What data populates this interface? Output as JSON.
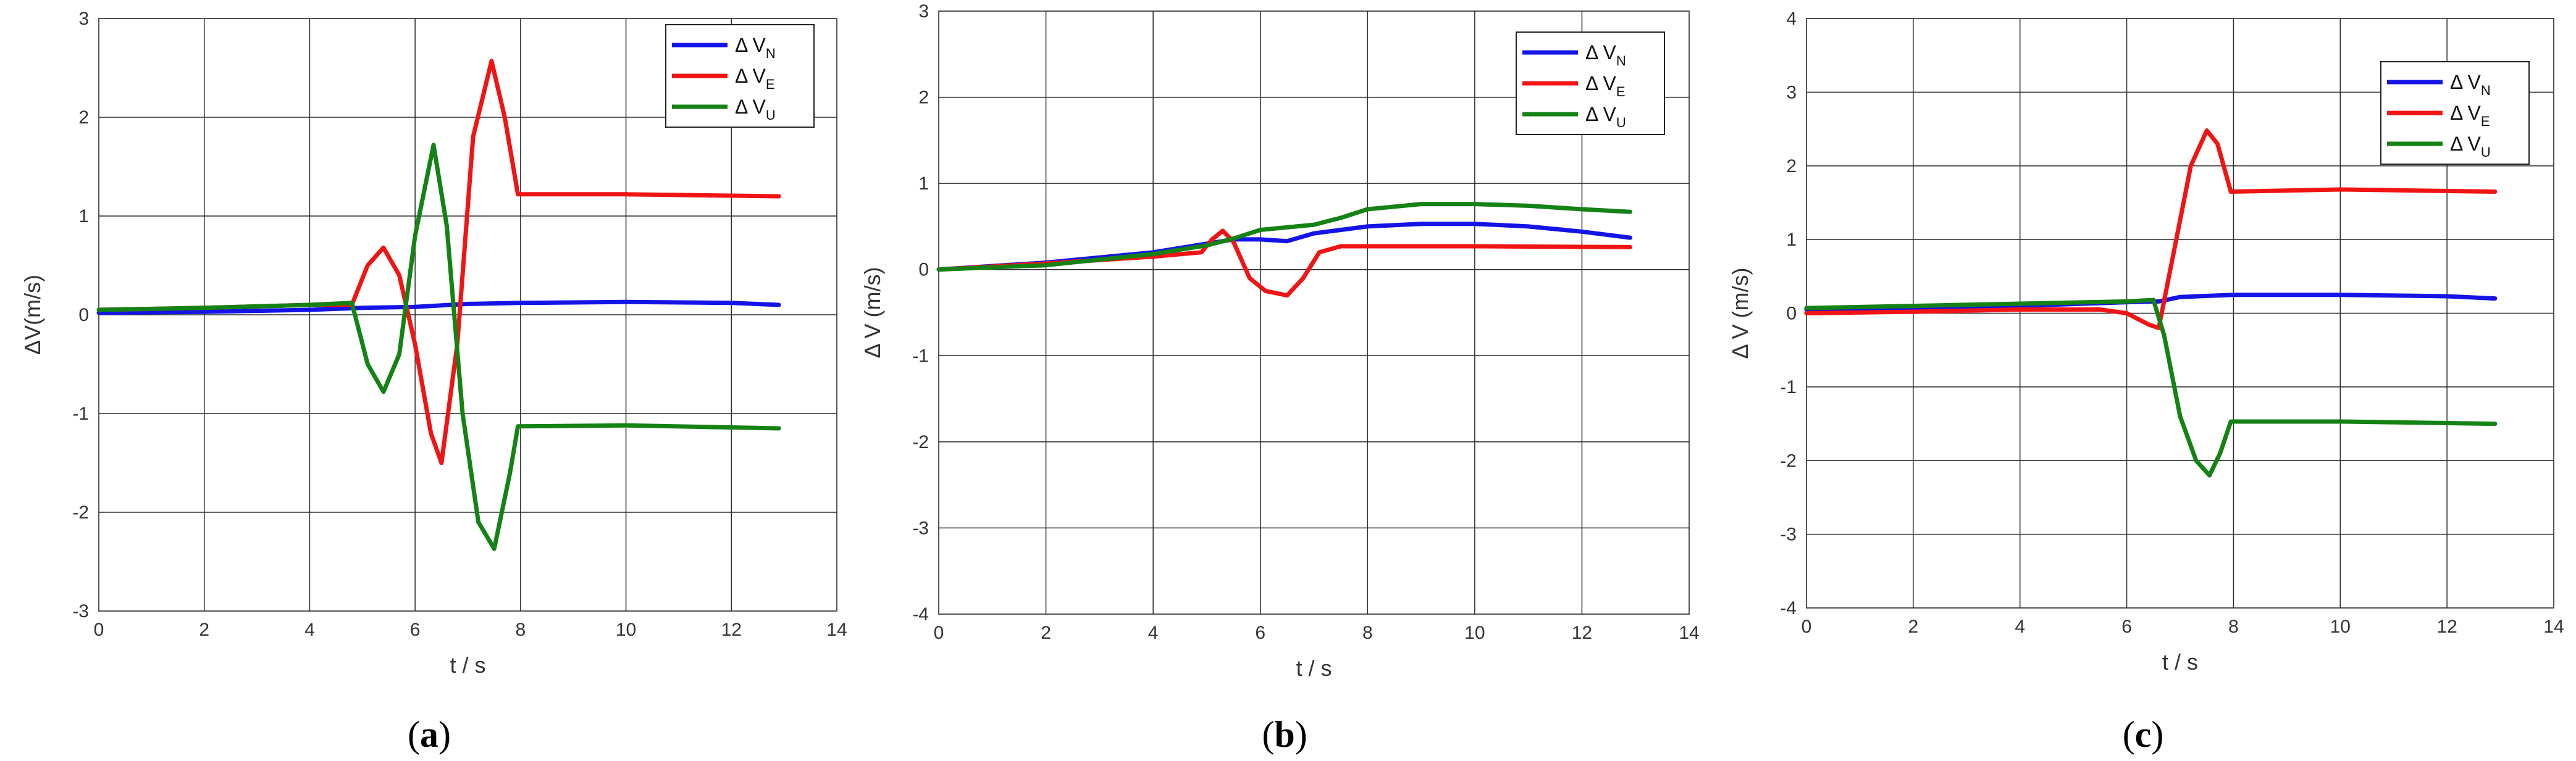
{
  "figure": {
    "colors": {
      "vn": "#1414e6",
      "ve": "#f01414",
      "vu": "#148214",
      "grid": "#2b2b2b",
      "frame": "#555555"
    }
  },
  "chart_data": [
    {
      "type": "line",
      "panel_label": "a",
      "xlabel": "t / s",
      "ylabel": "ΔV(m/s)",
      "xlim": [
        0,
        14
      ],
      "ylim": [
        -3,
        3
      ],
      "xticks": [
        0,
        2,
        4,
        6,
        8,
        10,
        12,
        14
      ],
      "yticks": [
        -3,
        -2,
        -1,
        0,
        1,
        2,
        3
      ],
      "grid": true,
      "legend_position": "top-right",
      "series": [
        {
          "name": "Δ V",
          "subscript": "N",
          "color": "#1414e6",
          "x": [
            0,
            2,
            4,
            5,
            6,
            7,
            8,
            10,
            12,
            12.9
          ],
          "y": [
            0.02,
            0.03,
            0.05,
            0.07,
            0.08,
            0.11,
            0.12,
            0.13,
            0.12,
            0.1
          ]
        },
        {
          "name": "Δ V",
          "subscript": "E",
          "color": "#f01414",
          "x": [
            0,
            2,
            4,
            4.8,
            5.1,
            5.4,
            5.7,
            6.0,
            6.3,
            6.5,
            6.8,
            7.1,
            7.45,
            7.7,
            7.95,
            10,
            12.9
          ],
          "y": [
            0.05,
            0.07,
            0.1,
            0.1,
            0.5,
            0.68,
            0.4,
            -0.3,
            -1.2,
            -1.5,
            -0.3,
            1.8,
            2.57,
            2.0,
            1.22,
            1.22,
            1.2
          ]
        },
        {
          "name": "Δ V",
          "subscript": "U",
          "color": "#148214",
          "x": [
            0,
            2,
            4,
            4.8,
            5.1,
            5.4,
            5.7,
            6.0,
            6.35,
            6.6,
            6.9,
            7.2,
            7.5,
            7.8,
            7.95,
            10,
            12.9
          ],
          "y": [
            0.05,
            0.07,
            0.1,
            0.12,
            -0.5,
            -0.78,
            -0.4,
            0.8,
            1.72,
            0.9,
            -1.0,
            -2.1,
            -2.37,
            -1.6,
            -1.13,
            -1.12,
            -1.15
          ]
        }
      ]
    },
    {
      "type": "line",
      "panel_label": "b",
      "xlabel": "t / s",
      "ylabel": "Δ V (m/s)",
      "xlim": [
        0,
        14
      ],
      "ylim": [
        -4,
        3
      ],
      "xticks": [
        0,
        2,
        4,
        6,
        8,
        10,
        12,
        14
      ],
      "yticks": [
        -4,
        -3,
        -2,
        -1,
        0,
        1,
        2,
        3
      ],
      "grid": true,
      "legend_position": "top-right",
      "series": [
        {
          "name": "Δ V",
          "subscript": "N",
          "color": "#1414e6",
          "x": [
            0,
            2,
            4,
            5,
            5.5,
            6,
            6.5,
            7,
            8,
            9,
            10,
            11,
            12,
            12.9
          ],
          "y": [
            0,
            0.08,
            0.2,
            0.3,
            0.35,
            0.35,
            0.33,
            0.42,
            0.5,
            0.53,
            0.53,
            0.5,
            0.44,
            0.37
          ]
        },
        {
          "name": "Δ V",
          "subscript": "E",
          "color": "#f01414",
          "x": [
            0,
            2,
            4,
            4.9,
            5.1,
            5.3,
            5.5,
            5.8,
            6.1,
            6.5,
            6.8,
            7.1,
            7.5,
            10,
            12.9
          ],
          "y": [
            0,
            0.07,
            0.15,
            0.2,
            0.35,
            0.45,
            0.32,
            -0.1,
            -0.25,
            -0.3,
            -0.1,
            0.2,
            0.27,
            0.27,
            0.26
          ]
        },
        {
          "name": "Δ V",
          "subscript": "U",
          "color": "#148214",
          "x": [
            0,
            2,
            4,
            5,
            5.5,
            6,
            7,
            7.5,
            8,
            9,
            10,
            11,
            12,
            12.9
          ],
          "y": [
            0,
            0.05,
            0.18,
            0.28,
            0.36,
            0.46,
            0.52,
            0.6,
            0.7,
            0.76,
            0.76,
            0.74,
            0.7,
            0.67
          ]
        }
      ]
    },
    {
      "type": "line",
      "panel_label": "c",
      "xlabel": "t / s",
      "ylabel": "Δ V (m/s)",
      "xlim": [
        0,
        14
      ],
      "ylim": [
        -4,
        4
      ],
      "xticks": [
        0,
        2,
        4,
        6,
        8,
        10,
        12,
        14
      ],
      "yticks": [
        -4,
        -3,
        -2,
        -1,
        0,
        1,
        2,
        3,
        4
      ],
      "grid": true,
      "legend_position": "top-right",
      "series": [
        {
          "name": "Δ V",
          "subscript": "N",
          "color": "#1414e6",
          "x": [
            0,
            2,
            4,
            6,
            6.6,
            7,
            8,
            10,
            12,
            12.9
          ],
          "y": [
            0.05,
            0.07,
            0.1,
            0.15,
            0.16,
            0.22,
            0.25,
            0.25,
            0.23,
            0.2
          ]
        },
        {
          "name": "Δ V",
          "subscript": "E",
          "color": "#f01414",
          "x": [
            0,
            2,
            4,
            5.5,
            6.0,
            6.4,
            6.6,
            6.9,
            7.2,
            7.5,
            7.7,
            7.95,
            10,
            12.9
          ],
          "y": [
            0,
            0.02,
            0.05,
            0.05,
            0.0,
            -0.15,
            -0.2,
            0.9,
            2.0,
            2.48,
            2.3,
            1.65,
            1.68,
            1.65
          ]
        },
        {
          "name": "Δ V",
          "subscript": "U",
          "color": "#148214",
          "x": [
            0,
            2,
            4,
            6,
            6.5,
            6.7,
            7.0,
            7.3,
            7.55,
            7.75,
            7.95,
            10,
            12.9
          ],
          "y": [
            0.07,
            0.1,
            0.13,
            0.16,
            0.18,
            -0.3,
            -1.4,
            -2.0,
            -2.2,
            -1.9,
            -1.47,
            -1.47,
            -1.5
          ]
        }
      ]
    }
  ]
}
